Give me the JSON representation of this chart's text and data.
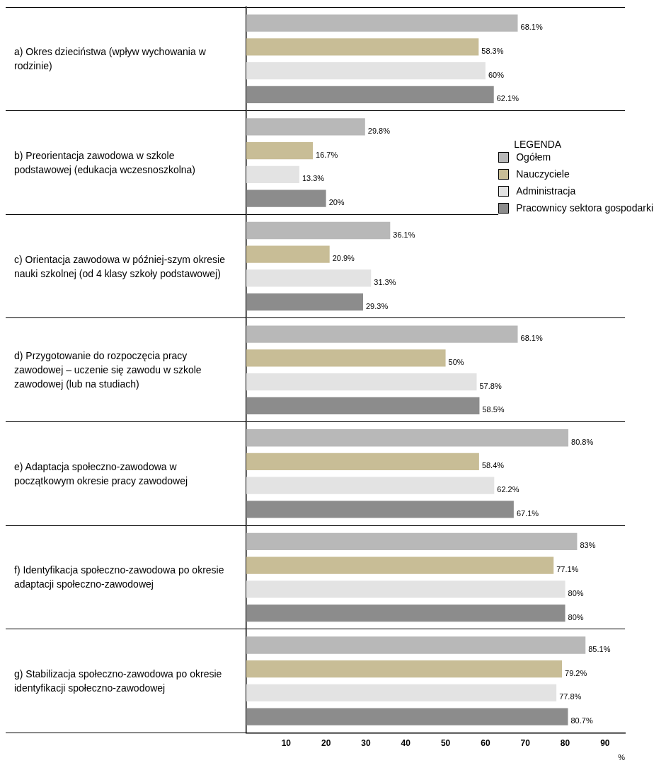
{
  "chart_data": {
    "type": "bar",
    "orientation": "horizontal",
    "xlabel": "%",
    "legend_title": "LEGENDA",
    "legend": "top right",
    "grid": "y",
    "categories": [
      "a) Okres dzieciństwa (wpływ wychowania w rodzinie)",
      "b) Preorientacja zawodowa w szkole podstawowej (edukacja wczesnoszkolna)",
      "c) Orientacja zawodowa w później-szym okresie nauki szkolnej (od 4 klasy szkoły podstawowej)",
      "d) Przygotowanie do rozpoczęcia pracy zawodowej – uczenie się zawodu w szkole zawodowej (lub na studiach)",
      "e) Adaptacja społeczno-zawodowa w początkowym okresie pracy zawodowej",
      "f) Identyfikacja społeczno-zawodowa po okresie adaptacji społeczno-zawodowej",
      "g) Stabilizacja społeczno-zawodowa po okresie identyfikacji społeczno-zawodowej"
    ],
    "xlim": [
      0,
      95
    ],
    "xticks": [
      10,
      20,
      30,
      40,
      50,
      60,
      70,
      80,
      90
    ],
    "series": [
      {
        "name": "Ogółem",
        "color": "#b8b8b8",
        "values": [
          68.1,
          29.8,
          36.1,
          68.1,
          80.8,
          83,
          85.1
        ],
        "value_labels": [
          "68.1%",
          "29.8%",
          "36.1%",
          "68.1%",
          "80.8%",
          "83%",
          "85.1%"
        ]
      },
      {
        "name": "Nauczyciele",
        "color": "#c8bd96",
        "values": [
          58.3,
          16.7,
          20.9,
          50,
          58.4,
          77.1,
          79.2
        ],
        "value_labels": [
          "58.3%",
          "16.7%",
          "20.9%",
          "50%",
          "58.4%",
          "77.1%",
          "79.2%"
        ]
      },
      {
        "name": "Administracja",
        "color": "#e3e3e3",
        "values": [
          60,
          13.3,
          31.3,
          57.8,
          62.2,
          80,
          77.8
        ],
        "value_labels": [
          "60%",
          "13.3%",
          "31.3%",
          "57.8%",
          "62.2%",
          "80%",
          "77.8%"
        ]
      },
      {
        "name": "Pracownicy sektora gospodarki",
        "color": "#8c8c8c",
        "values": [
          62.1,
          20,
          29.3,
          58.5,
          67.1,
          80,
          80.7
        ],
        "value_labels": [
          "62.1%",
          "20%",
          "29.3%",
          "58.5%",
          "67.1%",
          "80%",
          "80.7%"
        ]
      }
    ]
  }
}
